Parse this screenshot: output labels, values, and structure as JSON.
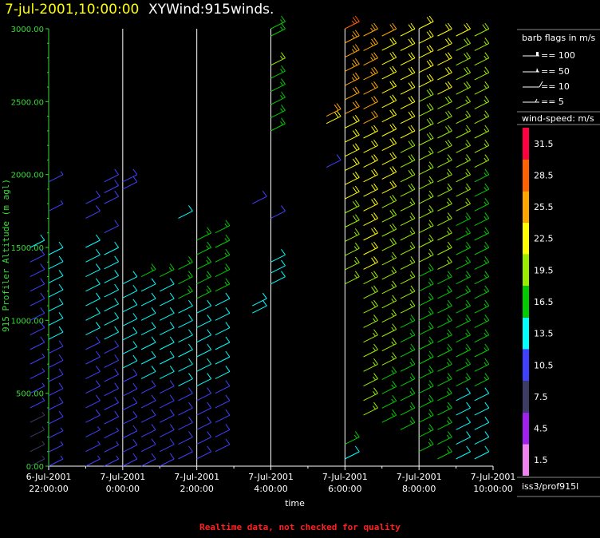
{
  "header": {
    "time_title": "7-jul-2001,10:00:00",
    "plot_title": "XYWind:915winds."
  },
  "chart_data": {
    "type": "wind-barb",
    "ylabel": "915 Profiler Altitude (m agl)",
    "xlabel": "time",
    "ylim": [
      0,
      3000
    ],
    "y_ticks": [
      "0.00",
      "500.00",
      "1000.00",
      "1500.00",
      "2000.00",
      "2500.00",
      "3000.00"
    ],
    "x_ticks": [
      {
        "date": "6-Jul-2001",
        "time": "22:00:00"
      },
      {
        "date": "7-Jul-2001",
        "time": "0:00:00"
      },
      {
        "date": "7-Jul-2001",
        "time": "2:00:00"
      },
      {
        "date": "7-Jul-2001",
        "time": "4:00:00"
      },
      {
        "date": "7-Jul-2001",
        "time": "6:00:00"
      },
      {
        "date": "7-Jul-2001",
        "time": "8:00:00"
      },
      {
        "date": "7-Jul-2001",
        "time": "10:00:00"
      }
    ],
    "x_range_hours": [
      "6-Jul-2001 22:00",
      "7-Jul-2001 10:00"
    ],
    "grid": "vertical lines at each hour tick",
    "barb_legend": {
      "title": "barb flags in m/s",
      "entries": [
        "== 100",
        "== 50",
        "== 10",
        "== 5"
      ]
    },
    "speed_scale": {
      "title": "wind-speed: m/s",
      "labels": [
        "1.5",
        "4.5",
        "7.5",
        "10.5",
        "13.5",
        "16.5",
        "19.5",
        "22.5",
        "25.5",
        "28.5",
        "31.5"
      ],
      "colors": [
        "#ee82ee",
        "#a020f0",
        "#3c3c64",
        "#4040ff",
        "#00ffff",
        "#00cc00",
        "#99ee00",
        "#ffff00",
        "#ffa500",
        "#ff6000",
        "#ff0040"
      ]
    },
    "series": [
      {
        "time": "21:30",
        "ranges": [
          [
            0,
            1500,
            8,
            12
          ]
        ]
      },
      {
        "time": "22:00",
        "ranges": [
          [
            0,
            1450,
            9,
            14
          ],
          [
            1750,
            1750,
            9,
            9
          ],
          [
            1950,
            1950,
            9,
            9
          ]
        ]
      },
      {
        "time": "23:00",
        "ranges": [
          [
            0,
            1500,
            9,
            14
          ],
          [
            1700,
            1700,
            10,
            10
          ],
          [
            1800,
            1800,
            10,
            10
          ]
        ]
      },
      {
        "time": "23:30",
        "ranges": [
          [
            0,
            1450,
            9,
            14
          ],
          [
            1600,
            1600,
            10,
            10
          ],
          [
            1800,
            1950,
            11,
            11
          ]
        ]
      },
      {
        "time": "0:00",
        "ranges": [
          [
            0,
            1250,
            10,
            14
          ],
          [
            1900,
            1950,
            11,
            11
          ]
        ]
      },
      {
        "time": "0:30",
        "ranges": [
          [
            0,
            1300,
            10,
            15
          ]
        ]
      },
      {
        "time": "1:00",
        "ranges": [
          [
            0,
            1300,
            10,
            15
          ]
        ]
      },
      {
        "time": "1:30",
        "ranges": [
          [
            50,
            1350,
            10,
            16
          ],
          [
            1700,
            1700,
            12,
            12
          ]
        ]
      },
      {
        "time": "2:00",
        "ranges": [
          [
            50,
            1550,
            10,
            17
          ]
        ]
      },
      {
        "time": "2:30",
        "ranges": [
          [
            100,
            1600,
            10,
            17
          ]
        ]
      },
      {
        "time": "3:30",
        "ranges": [
          [
            1050,
            1100,
            13,
            14
          ],
          [
            1800,
            1800,
            11,
            11
          ]
        ]
      },
      {
        "time": "4:00",
        "ranges": [
          [
            1250,
            1400,
            13,
            14
          ],
          [
            1700,
            1700,
            11,
            11
          ],
          [
            2300,
            2750,
            16,
            18
          ],
          [
            2950,
            3000,
            17,
            17
          ]
        ]
      },
      {
        "time": "5:30",
        "ranges": [
          [
            2050,
            2050,
            11,
            11
          ],
          [
            2350,
            2400,
            22,
            24
          ]
        ]
      },
      {
        "time": "6:00",
        "ranges": [
          [
            50,
            150,
            14,
            15
          ],
          [
            1250,
            3000,
            18,
            27
          ]
        ]
      },
      {
        "time": "6:30",
        "ranges": [
          [
            350,
            2950,
            18,
            26
          ]
        ]
      },
      {
        "time": "7:00",
        "ranges": [
          [
            300,
            2950,
            17,
            24
          ]
        ]
      },
      {
        "time": "7:30",
        "ranges": [
          [
            250,
            2950,
            16,
            23
          ]
        ]
      },
      {
        "time": "8:00",
        "ranges": [
          [
            100,
            3000,
            15,
            22
          ]
        ]
      },
      {
        "time": "8:30",
        "ranges": [
          [
            50,
            2950,
            15,
            22
          ]
        ]
      },
      {
        "time": "9:00",
        "ranges": [
          [
            50,
            2950,
            14,
            21
          ]
        ]
      },
      {
        "time": "9:30",
        "ranges": [
          [
            50,
            2950,
            14,
            20
          ]
        ]
      }
    ]
  },
  "legend": {
    "station": "iss3/prof915l"
  },
  "footer": {
    "note": "Realtime data, not checked for quality"
  }
}
